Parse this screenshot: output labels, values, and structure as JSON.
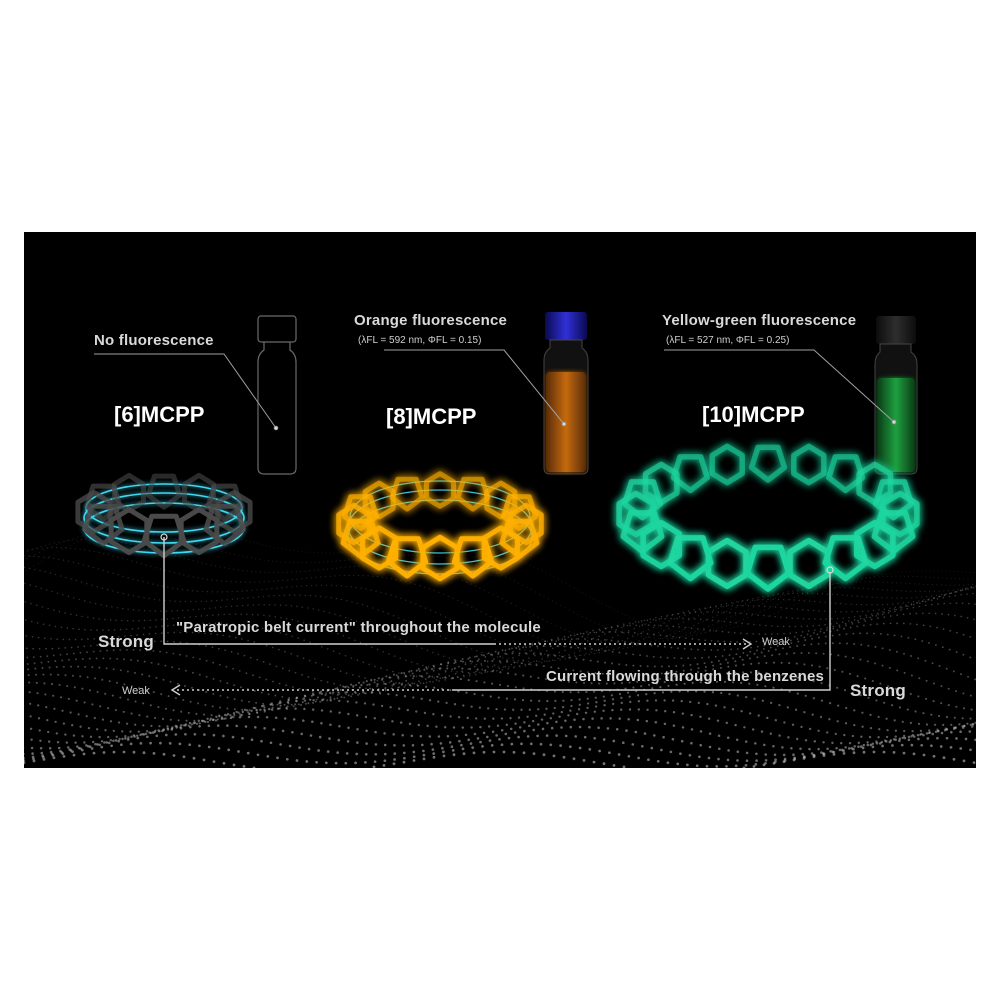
{
  "colors": {
    "background": "#000000",
    "current_ring": "#40d8f0",
    "mcpp6": "#3c3c3c",
    "mcpp8": "#ffb000",
    "mcpp10": "#1fd6a0",
    "vial_orange": "#c46a10",
    "vial_green": "#1fa040",
    "vial_cap": "#2a2ad0"
  },
  "labels": {
    "no_fluorescence": "No fluorescence",
    "orange_fluorescence": "Orange fluorescence",
    "orange_params": "(λFL = 592 nm, ΦFL = 0.15)",
    "yellowgreen_fluorescence": "Yellow-green fluorescence",
    "yellowgreen_params": "(λFL = 527 nm, ΦFL = 0.25)",
    "mcpp6": "[6]MCPP",
    "mcpp8": "[8]MCPP",
    "mcpp10": "[10]MCPP",
    "belt_strong": "Strong",
    "belt_current": "\"Paratropic belt current\" throughout the molecule",
    "belt_weak": "Weak",
    "benzene_weak": "Weak",
    "benzene_current": "Current flowing through the benzenes",
    "benzene_strong": "Strong"
  }
}
